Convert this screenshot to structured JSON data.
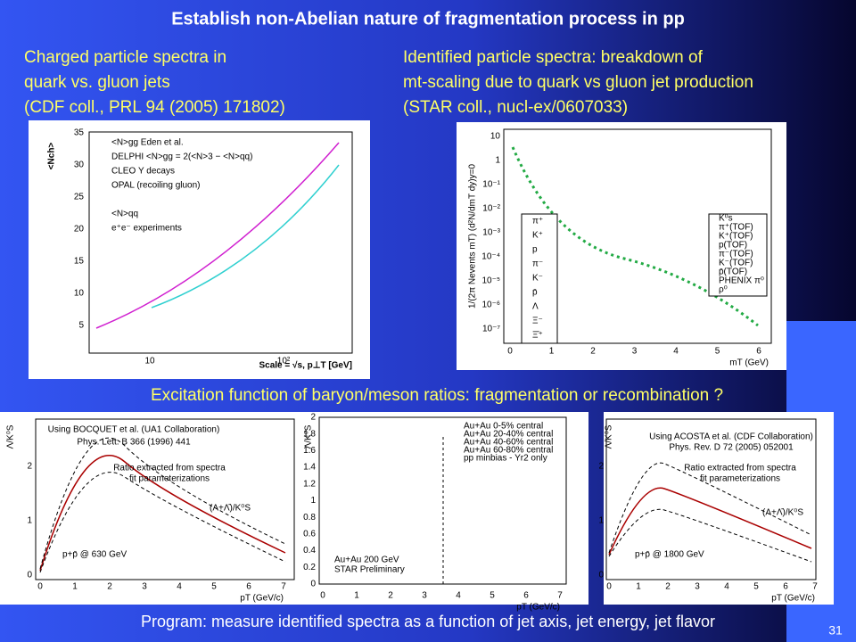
{
  "title": "Establish non-Abelian nature of fragmentation process in pp",
  "left_caption": [
    "Charged particle spectra in",
    "quark vs. gluon jets",
    "(CDF coll., PRL 94 (2005) 171802)"
  ],
  "right_caption": [
    "Identified particle spectra: breakdown of",
    "mt-scaling due to quark vs gluon jet production",
    "(STAR coll., nucl-ex/0607033)"
  ],
  "middle_caption": "Excitation function of baryon/meson ratios: fragmentation or recombination ?",
  "bottom_caption": "Program: measure identified spectra as a function of jet axis, jet energy, jet flavor",
  "page_number": "31",
  "figures": {
    "multiplicity": {
      "y_label": "<Nch>",
      "x_label": "Scale = √s, p⊥T [GeV]",
      "yticks": [
        "5",
        "10",
        "15",
        "20",
        "25",
        "30",
        "35"
      ],
      "xticks": [
        "10",
        "10²"
      ],
      "legend": [
        "<N>gg Eden et al.",
        "DELPHI <N>gg = 2(<N>3 − <N>qq)",
        "CLEO Υ decays",
        "OPAL (recoiling gluon)",
        "<N>qq",
        "e⁺e⁻ experiments"
      ]
    },
    "spectra": {
      "y_label": "1/(2π Nevents mT) (d²N/dmT dy)y=0",
      "x_label": "mT (GeV)",
      "xticks": [
        "0",
        "1",
        "2",
        "3",
        "4",
        "5",
        "6"
      ],
      "yticks": [
        "10",
        "1",
        "10⁻¹",
        "10⁻²",
        "10⁻³",
        "10⁻⁴",
        "10⁻⁵",
        "10⁻⁶",
        "10⁻⁷"
      ],
      "legend_left": [
        "π⁺",
        "K⁺",
        "p",
        "π⁻",
        "K⁻",
        "p̄",
        "Λ",
        "Ξ⁻",
        "Ξ̄⁺"
      ],
      "legend_right": [
        "K⁰s",
        "π⁺(TOF)",
        "K⁺(TOF)",
        "p(TOF)",
        "π⁻(TOF)",
        "K⁻(TOF)",
        "p̄(TOF)",
        "PHENIX π⁰",
        "ρ⁰"
      ]
    },
    "ua1": {
      "y_label": "Λ/K⁰S",
      "x_label": "pT (GeV/c)",
      "yticks": [
        "0",
        "1",
        "2"
      ],
      "xticks": [
        "0",
        "1",
        "2",
        "3",
        "4",
        "5",
        "6",
        "7"
      ],
      "texts": [
        "Using BOCQUET et al. (UA1 Collaboration)",
        "Phys. Lett. B 366 (1996) 441",
        "Ratio extracted from spectra",
        "fit parameterizations",
        "(Λ+Λ̄)/K⁰S",
        "p+p̄ @ 630 GeV"
      ]
    },
    "star": {
      "y_label": "Λ/K⁰S",
      "x_label": "pT (GeV/c)",
      "yticks": [
        "0",
        "0.2",
        "0.4",
        "0.6",
        "0.8",
        "1",
        "1.2",
        "1.4",
        "1.6",
        "1.8",
        "2"
      ],
      "xticks": [
        "0",
        "1",
        "2",
        "3",
        "4",
        "5",
        "6",
        "7"
      ],
      "legend": [
        "Au+Au 0-5% central",
        "Au+Au 20-40% central",
        "Au+Au 40-60% central",
        "Au+Au 60-80% central",
        "pp minbias - Yr2 only"
      ],
      "texts": [
        "Au+Au 200 GeV",
        "STAR Preliminary"
      ]
    },
    "cdf": {
      "y_label": "Λ/K⁰S",
      "x_label": "pT (GeV/c)",
      "yticks": [
        "0",
        "1",
        "2"
      ],
      "xticks": [
        "0",
        "1",
        "2",
        "3",
        "4",
        "5",
        "6",
        "7"
      ],
      "texts": [
        "Using ACOSTA et al. (CDF Collaboration)",
        "Phys. Rev. D 72 (2005) 052001",
        "Ratio extracted from spectra",
        "fit parameterizations",
        "(Λ+Λ̄)/K⁰S",
        "p+p̄ @ 1800 GeV"
      ]
    }
  }
}
